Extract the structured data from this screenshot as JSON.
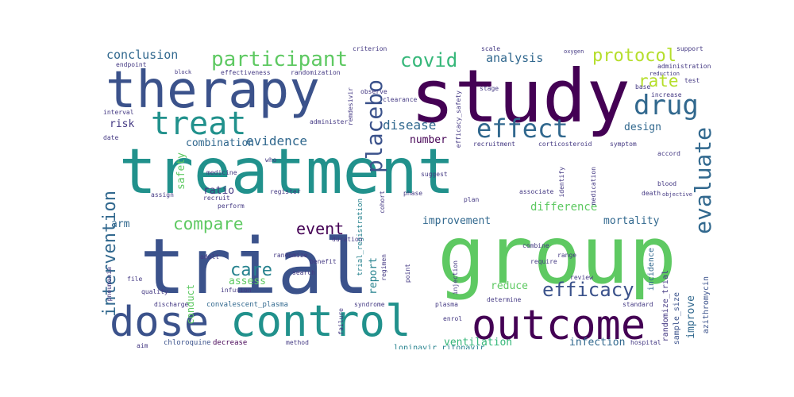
{
  "words": [
    {
      "text": "treatment",
      "color": "#21918c"
    },
    {
      "text": "trial",
      "color": "#3b528b"
    },
    {
      "text": "study",
      "color": "#440154"
    },
    {
      "text": "group",
      "color": "#5ec962"
    },
    {
      "text": "therapy",
      "color": "#3b528b"
    },
    {
      "text": "control",
      "color": "#21918c"
    },
    {
      "text": "outcome",
      "color": "#440154"
    },
    {
      "text": "dose",
      "color": "#3b528b"
    },
    {
      "text": "treat",
      "color": "#21918c"
    },
    {
      "text": "effect",
      "color": "#31688e"
    },
    {
      "text": "drug",
      "color": "#31688e"
    },
    {
      "text": "participant",
      "color": "#5ec962"
    },
    {
      "text": "covid",
      "color": "#35b779"
    },
    {
      "text": "protocol",
      "color": "#b5de2b"
    },
    {
      "text": "evaluate",
      "color": "#31688e"
    },
    {
      "text": "placebo",
      "color": "#3b528b"
    },
    {
      "text": "efficacy",
      "color": "#3b528b"
    },
    {
      "text": "intervention",
      "color": "#31688e"
    },
    {
      "text": "compare",
      "color": "#5ec962"
    },
    {
      "text": "care",
      "color": "#26828e"
    },
    {
      "text": "event",
      "color": "#440154"
    },
    {
      "text": "conclusion",
      "color": "#31688e"
    },
    {
      "text": "analysis",
      "color": "#31688e"
    },
    {
      "text": "rate",
      "color": "#b5de2b"
    },
    {
      "text": "disease",
      "color": "#31688e"
    },
    {
      "text": "evidence",
      "color": "#31688e"
    },
    {
      "text": "risk",
      "color": "#443983"
    },
    {
      "text": "combination",
      "color": "#31688e"
    },
    {
      "text": "number",
      "color": "#440154"
    },
    {
      "text": "design",
      "color": "#31688e"
    },
    {
      "text": "mortality",
      "color": "#31688e"
    },
    {
      "text": "difference",
      "color": "#5ec962"
    },
    {
      "text": "improvement",
      "color": "#31688e"
    },
    {
      "text": "ventilation",
      "color": "#35b779"
    },
    {
      "text": "infection",
      "color": "#31688e"
    },
    {
      "text": "reduce",
      "color": "#5ec962"
    },
    {
      "text": "ratio",
      "color": "#443983"
    },
    {
      "text": "arm",
      "color": "#31688e"
    },
    {
      "text": "safety",
      "color": "#5ec962"
    },
    {
      "text": "assess",
      "color": "#5ec962"
    },
    {
      "text": "conduct",
      "color": "#5ec962"
    },
    {
      "text": "report",
      "color": "#26828e"
    },
    {
      "text": "improve",
      "color": "#31688e"
    },
    {
      "text": "randomize_trial",
      "color": "#443983"
    },
    {
      "text": "sample_size",
      "color": "#3b528b"
    },
    {
      "text": "azithromycin",
      "color": "#3b528b"
    },
    {
      "text": "incidence",
      "color": "#31688e"
    },
    {
      "text": "trial_registration",
      "color": "#26828e"
    },
    {
      "text": "lopinavir_ritonavir",
      "color": "#26828e"
    },
    {
      "text": "convalescent_plasma",
      "color": "#31688e"
    },
    {
      "text": "chloroquine",
      "color": "#3b528b"
    },
    {
      "text": "decrease",
      "color": "#440154"
    },
    {
      "text": "endpoint",
      "color": "#443983"
    },
    {
      "text": "effectiveness",
      "color": "#443983"
    },
    {
      "text": "randomization",
      "color": "#443983"
    },
    {
      "text": "criterion",
      "color": "#443983"
    },
    {
      "text": "remdesivir",
      "color": "#443983"
    },
    {
      "text": "efficacy_safety",
      "color": "#443983"
    },
    {
      "text": "oxygen",
      "color": "#443983"
    },
    {
      "text": "reduction",
      "color": "#443983"
    },
    {
      "text": "increase",
      "color": "#443983"
    },
    {
      "text": "administration",
      "color": "#443983"
    },
    {
      "text": "support",
      "color": "#443983"
    },
    {
      "text": "scale",
      "color": "#443983"
    },
    {
      "text": "test",
      "color": "#443983"
    },
    {
      "text": "base",
      "color": "#443983"
    },
    {
      "text": "observe",
      "color": "#443983"
    },
    {
      "text": "clearance",
      "color": "#443983"
    },
    {
      "text": "stage",
      "color": "#443983"
    },
    {
      "text": "recruitment",
      "color": "#443983"
    },
    {
      "text": "corticosteroid",
      "color": "#443983"
    },
    {
      "text": "symptom",
      "color": "#443983"
    },
    {
      "text": "accord",
      "color": "#443983"
    },
    {
      "text": "blood",
      "color": "#443983"
    },
    {
      "text": "death",
      "color": "#443983"
    },
    {
      "text": "medication",
      "color": "#443983"
    },
    {
      "text": "associate",
      "color": "#443983"
    },
    {
      "text": "identify",
      "color": "#443983"
    },
    {
      "text": "plan",
      "color": "#443983"
    },
    {
      "text": "phase",
      "color": "#443983"
    },
    {
      "text": "suggest",
      "color": "#443983"
    },
    {
      "text": "cohort",
      "color": "#443983"
    },
    {
      "text": "register",
      "color": "#443983"
    },
    {
      "text": "recruit",
      "color": "#443983"
    },
    {
      "text": "assign",
      "color": "#443983"
    },
    {
      "text": "medicine",
      "color": "#443983"
    },
    {
      "text": "perform",
      "color": "#443983"
    },
    {
      "text": "adult",
      "color": "#443983"
    },
    {
      "text": "randomize",
      "color": "#443983"
    },
    {
      "text": "duration",
      "color": "#443983"
    },
    {
      "text": "benefit",
      "color": "#443983"
    },
    {
      "text": "search",
      "color": "#443983"
    },
    {
      "text": "regimen",
      "color": "#443983"
    },
    {
      "text": "point",
      "color": "#443983"
    },
    {
      "text": "injection",
      "color": "#443983"
    },
    {
      "text": "combine",
      "color": "#443983"
    },
    {
      "text": "require",
      "color": "#443983"
    },
    {
      "text": "review",
      "color": "#443983"
    },
    {
      "text": "determine",
      "color": "#443983"
    },
    {
      "text": "plasma",
      "color": "#443983"
    },
    {
      "text": "enrol",
      "color": "#443983"
    },
    {
      "text": "failure",
      "color": "#443983"
    },
    {
      "text": "syndrome",
      "color": "#443983"
    },
    {
      "text": "infusion",
      "color": "#443983"
    },
    {
      "text": "quality",
      "color": "#443983"
    },
    {
      "text": "file",
      "color": "#443983"
    },
    {
      "text": "discharge",
      "color": "#443983"
    },
    {
      "text": "pneumonia",
      "color": "#443983"
    },
    {
      "text": "aim",
      "color": "#443983"
    },
    {
      "text": "method",
      "color": "#443983"
    },
    {
      "text": "hospital",
      "color": "#443983"
    },
    {
      "text": "administer",
      "color": "#443983"
    },
    {
      "text": "interval",
      "color": "#443983"
    },
    {
      "text": "date",
      "color": "#443983"
    },
    {
      "text": "block",
      "color": "#443983"
    },
    {
      "text": "range",
      "color": "#443983"
    },
    {
      "text": "who",
      "color": "#443983"
    },
    {
      "text": "standard",
      "color": "#443983"
    },
    {
      "text": "objective",
      "color": "#443983"
    }
  ]
}
